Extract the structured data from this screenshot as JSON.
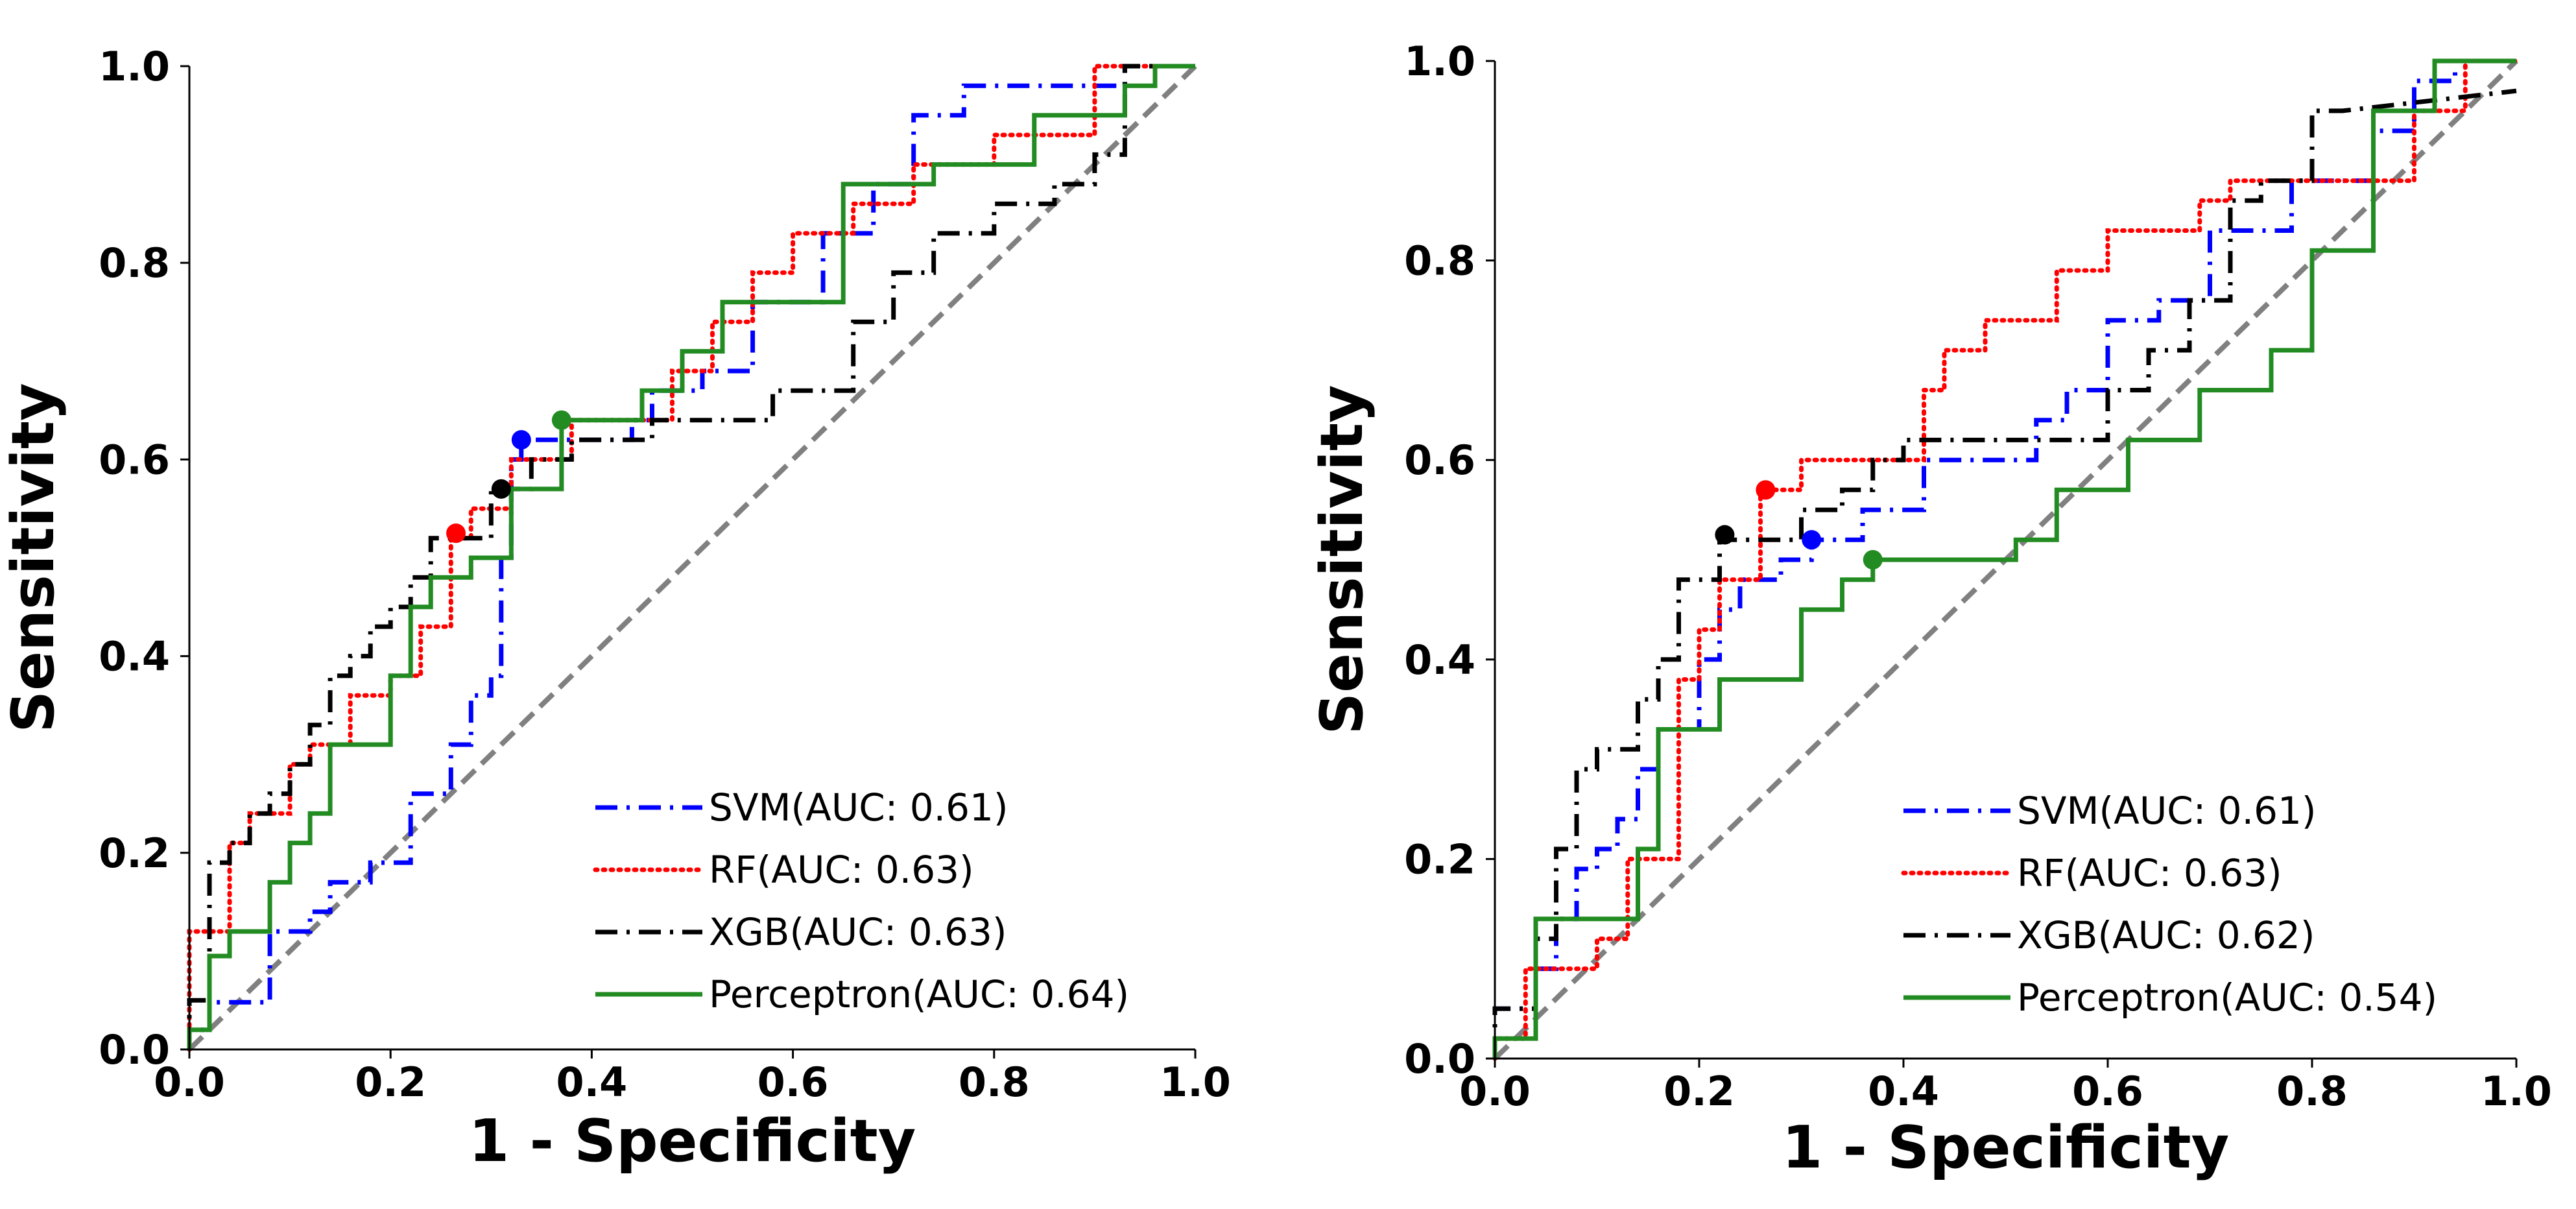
{
  "chart_data": [
    {
      "type": "line",
      "title": "",
      "xlabel": "1 - Specificity",
      "ylabel": "Sensitivity",
      "xlim": [
        0,
        1
      ],
      "ylim": [
        0,
        1
      ],
      "xticks": [
        "0.0",
        "0.2",
        "0.4",
        "0.6",
        "0.8",
        "1.0"
      ],
      "yticks": [
        "0.0",
        "0.2",
        "0.4",
        "0.6",
        "0.8",
        "1.0"
      ],
      "grid": false,
      "legend_position": "bottom-right",
      "reference_line": {
        "name": "chance",
        "color": "#808080",
        "x": [
          0,
          1
        ],
        "y": [
          0,
          1
        ]
      },
      "series": [
        {
          "name": "SVM",
          "label": "SVM(AUC: 0.61)",
          "auc": 0.61,
          "color": "#0000ff",
          "style": "dashdot",
          "x": [
            0,
            0,
            0.02,
            0.02,
            0.08,
            0.08,
            0.12,
            0.12,
            0.14,
            0.14,
            0.18,
            0.18,
            0.22,
            0.22,
            0.26,
            0.26,
            0.28,
            0.28,
            0.3,
            0.3,
            0.31,
            0.31,
            0.32,
            0.32,
            0.33,
            0.33,
            0.44,
            0.44,
            0.46,
            0.46,
            0.51,
            0.51,
            0.56,
            0.56,
            0.63,
            0.63,
            0.68,
            0.68,
            0.72,
            0.72,
            0.77,
            0.77,
            0.93,
            0.93,
            1.0
          ],
          "y": [
            0,
            0.02,
            0.02,
            0.048,
            0.048,
            0.12,
            0.12,
            0.14,
            0.14,
            0.17,
            0.17,
            0.19,
            0.19,
            0.26,
            0.26,
            0.31,
            0.31,
            0.36,
            0.36,
            0.38,
            0.38,
            0.5,
            0.5,
            0.6,
            0.6,
            0.62,
            0.62,
            0.64,
            0.64,
            0.67,
            0.67,
            0.69,
            0.69,
            0.76,
            0.76,
            0.83,
            0.83,
            0.88,
            0.88,
            0.95,
            0.95,
            0.98,
            0.98,
            1.0,
            1.0
          ],
          "optimal_point": {
            "x": 0.33,
            "y": 0.62
          }
        },
        {
          "name": "RF",
          "label": "RF(AUC: 0.63)",
          "auc": 0.63,
          "color": "#ff0000",
          "style": "dotted",
          "x": [
            0,
            0,
            0.04,
            0.04,
            0.06,
            0.06,
            0.1,
            0.1,
            0.12,
            0.12,
            0.16,
            0.16,
            0.2,
            0.2,
            0.23,
            0.23,
            0.26,
            0.26,
            0.28,
            0.28,
            0.32,
            0.32,
            0.38,
            0.38,
            0.48,
            0.48,
            0.52,
            0.52,
            0.56,
            0.56,
            0.6,
            0.6,
            0.66,
            0.66,
            0.72,
            0.72,
            0.8,
            0.8,
            0.9,
            0.9,
            1.0
          ],
          "y": [
            0,
            0.12,
            0.12,
            0.21,
            0.21,
            0.24,
            0.24,
            0.29,
            0.29,
            0.31,
            0.31,
            0.36,
            0.36,
            0.38,
            0.38,
            0.43,
            0.43,
            0.52,
            0.52,
            0.55,
            0.55,
            0.6,
            0.6,
            0.64,
            0.64,
            0.69,
            0.69,
            0.74,
            0.74,
            0.79,
            0.79,
            0.83,
            0.83,
            0.86,
            0.86,
            0.9,
            0.9,
            0.93,
            0.93,
            1.0,
            1.0
          ],
          "optimal_point": {
            "x": 0.265,
            "y": 0.525
          }
        },
        {
          "name": "XGB",
          "label": "XGB(AUC: 0.63)",
          "auc": 0.63,
          "color": "#000000",
          "style": "dashdot",
          "x": [
            0,
            0,
            0.02,
            0.02,
            0.04,
            0.04,
            0.06,
            0.06,
            0.08,
            0.08,
            0.1,
            0.1,
            0.12,
            0.12,
            0.14,
            0.14,
            0.16,
            0.16,
            0.18,
            0.18,
            0.2,
            0.2,
            0.22,
            0.22,
            0.24,
            0.24,
            0.3,
            0.3,
            0.34,
            0.34,
            0.38,
            0.38,
            0.46,
            0.46,
            0.58,
            0.58,
            0.66,
            0.66,
            0.7,
            0.7,
            0.74,
            0.74,
            0.8,
            0.8,
            0.86,
            0.86,
            0.9,
            0.9,
            0.93,
            0.93,
            1.0
          ],
          "y": [
            0,
            0.05,
            0.05,
            0.19,
            0.19,
            0.21,
            0.21,
            0.24,
            0.24,
            0.26,
            0.26,
            0.29,
            0.29,
            0.33,
            0.33,
            0.38,
            0.38,
            0.4,
            0.4,
            0.43,
            0.43,
            0.45,
            0.45,
            0.48,
            0.48,
            0.52,
            0.52,
            0.57,
            0.57,
            0.6,
            0.6,
            0.62,
            0.62,
            0.64,
            0.64,
            0.67,
            0.67,
            0.74,
            0.74,
            0.79,
            0.79,
            0.83,
            0.83,
            0.86,
            0.86,
            0.88,
            0.88,
            0.91,
            0.91,
            1.0,
            1.0
          ],
          "optimal_point": {
            "x": 0.31,
            "y": 0.57
          }
        },
        {
          "name": "Perceptron",
          "label": "Perceptron(AUC: 0.64)",
          "auc": 0.64,
          "color": "#228b22",
          "style": "solid",
          "x": [
            0,
            0,
            0.02,
            0.02,
            0.04,
            0.04,
            0.08,
            0.08,
            0.1,
            0.1,
            0.12,
            0.12,
            0.14,
            0.14,
            0.2,
            0.2,
            0.22,
            0.22,
            0.24,
            0.24,
            0.28,
            0.28,
            0.32,
            0.32,
            0.37,
            0.37,
            0.45,
            0.45,
            0.49,
            0.49,
            0.53,
            0.53,
            0.65,
            0.65,
            0.74,
            0.74,
            0.84,
            0.84,
            0.93,
            0.93,
            0.96,
            0.96,
            1.0
          ],
          "y": [
            0,
            0.02,
            0.02,
            0.095,
            0.095,
            0.12,
            0.12,
            0.17,
            0.17,
            0.21,
            0.21,
            0.24,
            0.24,
            0.31,
            0.31,
            0.38,
            0.38,
            0.45,
            0.45,
            0.48,
            0.48,
            0.5,
            0.5,
            0.57,
            0.57,
            0.64,
            0.64,
            0.67,
            0.67,
            0.71,
            0.71,
            0.76,
            0.76,
            0.88,
            0.88,
            0.9,
            0.9,
            0.95,
            0.95,
            0.98,
            0.98,
            1.0,
            1.0
          ],
          "optimal_point": {
            "x": 0.37,
            "y": 0.64
          }
        }
      ]
    },
    {
      "type": "line",
      "title": "",
      "xlabel": "1 - Specificity",
      "ylabel": "Sensitivity",
      "xlim": [
        0,
        1
      ],
      "ylim": [
        0,
        1
      ],
      "xticks": [
        "0.0",
        "0.2",
        "0.4",
        "0.6",
        "0.8",
        "1.0"
      ],
      "yticks": [
        "0.0",
        "0.2",
        "0.4",
        "0.6",
        "0.8",
        "1.0"
      ],
      "grid": false,
      "legend_position": "bottom-right",
      "reference_line": {
        "name": "chance",
        "color": "#808080",
        "x": [
          0,
          1
        ],
        "y": [
          0,
          1
        ]
      },
      "series": [
        {
          "name": "SVM",
          "label": "SVM(AUC: 0.61)",
          "auc": 0.61,
          "color": "#0000ff",
          "style": "dashdot",
          "x": [
            0,
            0,
            0.04,
            0.04,
            0.06,
            0.06,
            0.08,
            0.08,
            0.1,
            0.1,
            0.12,
            0.12,
            0.14,
            0.14,
            0.16,
            0.16,
            0.2,
            0.2,
            0.22,
            0.22,
            0.24,
            0.24,
            0.28,
            0.28,
            0.31,
            0.31,
            0.36,
            0.36,
            0.42,
            0.42,
            0.53,
            0.53,
            0.56,
            0.56,
            0.6,
            0.6,
            0.65,
            0.65,
            0.7,
            0.7,
            0.78,
            0.78,
            0.86,
            0.86,
            0.9,
            0.9,
            0.94,
            0.94,
            1.0
          ],
          "y": [
            0,
            0.05,
            0.05,
            0.09,
            0.09,
            0.14,
            0.14,
            0.19,
            0.19,
            0.21,
            0.21,
            0.24,
            0.24,
            0.29,
            0.29,
            0.33,
            0.33,
            0.4,
            0.4,
            0.45,
            0.45,
            0.48,
            0.48,
            0.5,
            0.5,
            0.52,
            0.52,
            0.55,
            0.55,
            0.6,
            0.6,
            0.64,
            0.64,
            0.67,
            0.67,
            0.74,
            0.74,
            0.76,
            0.76,
            0.83,
            0.83,
            0.88,
            0.88,
            0.93,
            0.93,
            0.98,
            0.98,
            1.0,
            1.0
          ],
          "optimal_point": {
            "x": 0.31,
            "y": 0.52
          }
        },
        {
          "name": "RF",
          "label": "RF(AUC: 0.63)",
          "auc": 0.63,
          "color": "#ff0000",
          "style": "dotted",
          "x": [
            0,
            0,
            0.03,
            0.03,
            0.06,
            0.06,
            0.1,
            0.1,
            0.13,
            0.13,
            0.18,
            0.18,
            0.2,
            0.2,
            0.22,
            0.22,
            0.26,
            0.26,
            0.3,
            0.3,
            0.42,
            0.42,
            0.44,
            0.44,
            0.48,
            0.48,
            0.55,
            0.55,
            0.6,
            0.6,
            0.64,
            0.64,
            0.69,
            0.69,
            0.72,
            0.72,
            0.9,
            0.9,
            0.95,
            0.95,
            1.0
          ],
          "y": [
            0,
            0.02,
            0.02,
            0.09,
            0.09,
            0.09,
            0.09,
            0.12,
            0.12,
            0.2,
            0.2,
            0.38,
            0.38,
            0.43,
            0.43,
            0.48,
            0.48,
            0.57,
            0.57,
            0.6,
            0.6,
            0.67,
            0.67,
            0.71,
            0.71,
            0.74,
            0.74,
            0.79,
            0.79,
            0.83,
            0.83,
            0.83,
            0.83,
            0.86,
            0.86,
            0.88,
            0.88,
            0.95,
            0.95,
            1.0,
            1.0
          ],
          "optimal_point": {
            "x": 0.265,
            "y": 0.57
          }
        },
        {
          "name": "XGB",
          "label": "XGB(AUC: 0.62)",
          "auc": 0.62,
          "color": "#000000",
          "style": "dashdot",
          "x": [
            0,
            0,
            0.04,
            0.04,
            0.06,
            0.06,
            0.08,
            0.08,
            0.1,
            0.1,
            0.14,
            0.14,
            0.16,
            0.16,
            0.18,
            0.18,
            0.22,
            0.22,
            0.3,
            0.3,
            0.34,
            0.34,
            0.37,
            0.37,
            0.4,
            0.4,
            0.45,
            0.45,
            0.6,
            0.6,
            0.64,
            0.64,
            0.68,
            0.68,
            0.72,
            0.72,
            0.75,
            0.75,
            0.8,
            0.8,
            0.83,
            0.83,
            1.0
          ],
          "y": [
            0,
            0.05,
            0.05,
            0.12,
            0.12,
            0.21,
            0.21,
            0.29,
            0.29,
            0.31,
            0.31,
            0.36,
            0.36,
            0.4,
            0.4,
            0.48,
            0.48,
            0.52,
            0.52,
            0.55,
            0.55,
            0.57,
            0.57,
            0.6,
            0.6,
            0.62,
            0.62,
            0.62,
            0.62,
            0.67,
            0.67,
            0.71,
            0.71,
            0.76,
            0.76,
            0.86,
            0.86,
            0.88,
            0.88,
            0.95,
            0.95,
            0.95,
            0.97
          ],
          "optimal_point": {
            "x": 0.225,
            "y": 0.525
          }
        },
        {
          "name": "Perceptron",
          "label": "Perceptron(AUC: 0.54)",
          "auc": 0.54,
          "color": "#228b22",
          "style": "solid",
          "x": [
            0,
            0,
            0.04,
            0.04,
            0.14,
            0.14,
            0.16,
            0.16,
            0.22,
            0.22,
            0.3,
            0.3,
            0.34,
            0.34,
            0.37,
            0.37,
            0.51,
            0.51,
            0.55,
            0.55,
            0.62,
            0.62,
            0.69,
            0.69,
            0.76,
            0.76,
            0.8,
            0.8,
            0.86,
            0.86,
            0.92,
            0.92,
            1.0
          ],
          "y": [
            0,
            0.02,
            0.02,
            0.14,
            0.14,
            0.21,
            0.21,
            0.33,
            0.33,
            0.38,
            0.38,
            0.45,
            0.45,
            0.48,
            0.48,
            0.5,
            0.5,
            0.52,
            0.52,
            0.57,
            0.57,
            0.62,
            0.62,
            0.67,
            0.67,
            0.71,
            0.71,
            0.81,
            0.81,
            0.95,
            0.95,
            1.0,
            1.0
          ],
          "optimal_point": {
            "x": 0.37,
            "y": 0.5
          }
        }
      ]
    }
  ]
}
